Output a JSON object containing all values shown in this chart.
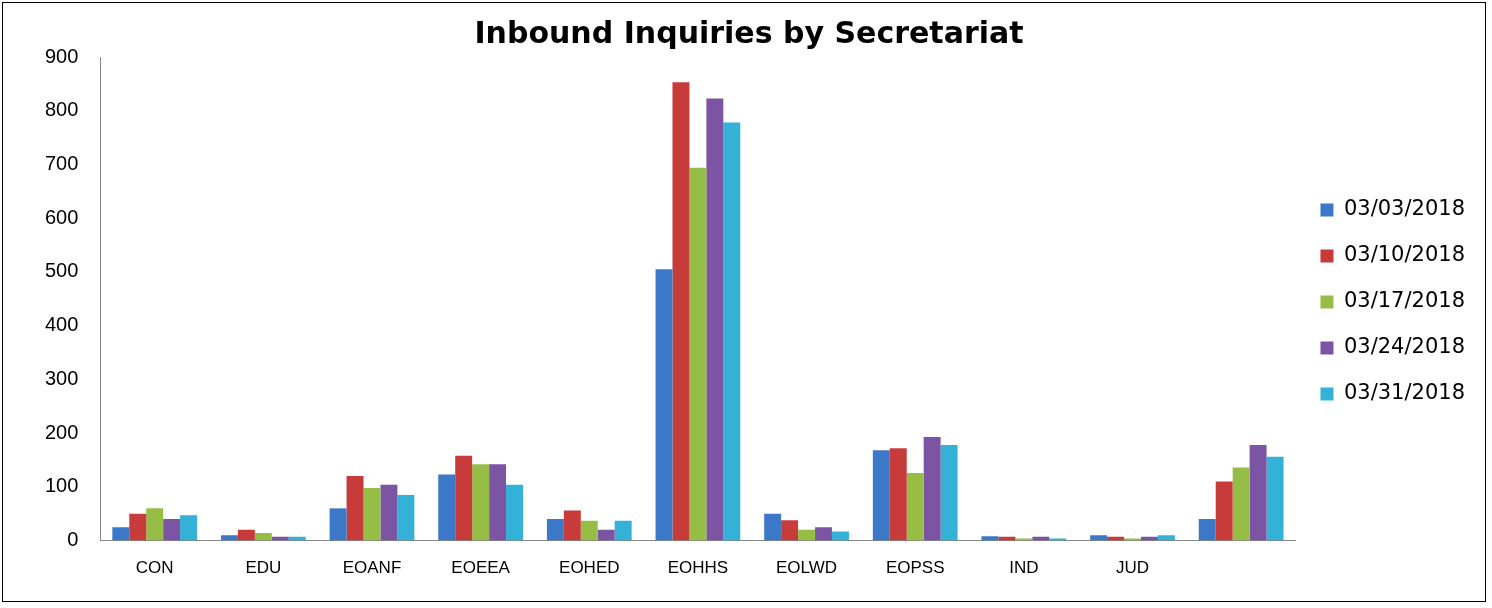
{
  "chart_data": {
    "type": "bar",
    "title": "Inbound Inquiries by Secretariat",
    "categories": [
      "CON",
      "EDU",
      "EOANF",
      "EOEEA",
      "EOHED",
      "EOHHS",
      "EOLWD",
      "EOPSS",
      "IND",
      "JUD",
      null
    ],
    "series": [
      {
        "name": "03/03/2018",
        "color": "#3b78c7",
        "values": [
          25,
          10,
          60,
          123,
          40,
          505,
          50,
          168,
          8,
          10,
          40
        ]
      },
      {
        "name": "03/10/2018",
        "color": "#c83b3b",
        "values": [
          50,
          20,
          120,
          158,
          56,
          853,
          38,
          172,
          7,
          7,
          110
        ]
      },
      {
        "name": "03/17/2018",
        "color": "#96be46",
        "values": [
          60,
          14,
          98,
          142,
          37,
          694,
          20,
          126,
          4,
          4,
          136
        ]
      },
      {
        "name": "03/24/2018",
        "color": "#7b55a3",
        "values": [
          40,
          7,
          104,
          142,
          20,
          823,
          25,
          193,
          7,
          7,
          178
        ]
      },
      {
        "name": "03/31/2018",
        "color": "#33b1d6",
        "values": [
          47,
          7,
          85,
          104,
          37,
          778,
          17,
          178,
          4,
          10,
          156
        ]
      }
    ],
    "ylim": [
      0,
      900
    ],
    "yticks": [
      0,
      100,
      200,
      300,
      400,
      500,
      600,
      700,
      800,
      900
    ],
    "grid": false,
    "legend": "right"
  }
}
